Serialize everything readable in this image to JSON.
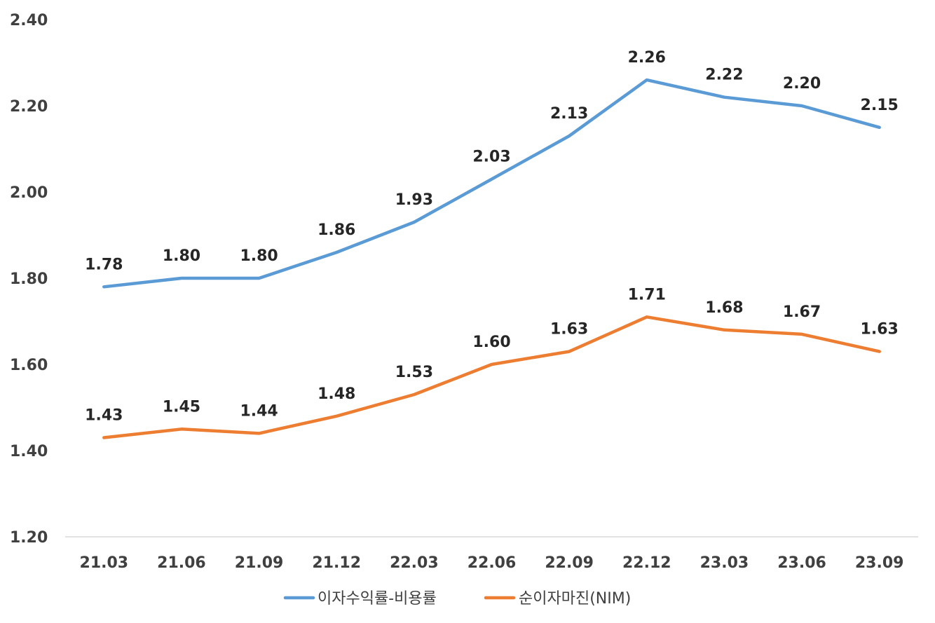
{
  "chart_data": {
    "type": "line",
    "categories": [
      "21.03",
      "21.06",
      "21.09",
      "21.12",
      "22.03",
      "22.06",
      "22.09",
      "22.12",
      "23.03",
      "23.06",
      "23.09"
    ],
    "series": [
      {
        "name": "이자수익률-비용률",
        "color": "#5B9BD5",
        "values": [
          1.78,
          1.8,
          1.8,
          1.86,
          1.93,
          2.03,
          2.13,
          2.26,
          2.22,
          2.2,
          2.15
        ],
        "labels": [
          "1.78",
          "1.80",
          "1.80",
          "1.86",
          "1.93",
          "2.03",
          "2.13",
          "2.26",
          "2.22",
          "2.20",
          "2.15"
        ]
      },
      {
        "name": "순이자마진(NIM)",
        "color": "#ED7D31",
        "values": [
          1.43,
          1.45,
          1.44,
          1.48,
          1.53,
          1.6,
          1.63,
          1.71,
          1.68,
          1.67,
          1.63
        ],
        "labels": [
          "1.43",
          "1.45",
          "1.44",
          "1.48",
          "1.53",
          "1.60",
          "1.63",
          "1.71",
          "1.68",
          "1.67",
          "1.63"
        ]
      }
    ],
    "ylim": [
      1.2,
      2.4
    ],
    "yticks": [
      "1.20",
      "1.40",
      "1.60",
      "1.80",
      "2.00",
      "2.20",
      "2.40"
    ],
    "grid": false,
    "legend_position": "bottom",
    "title": "",
    "xlabel": "",
    "ylabel": ""
  }
}
